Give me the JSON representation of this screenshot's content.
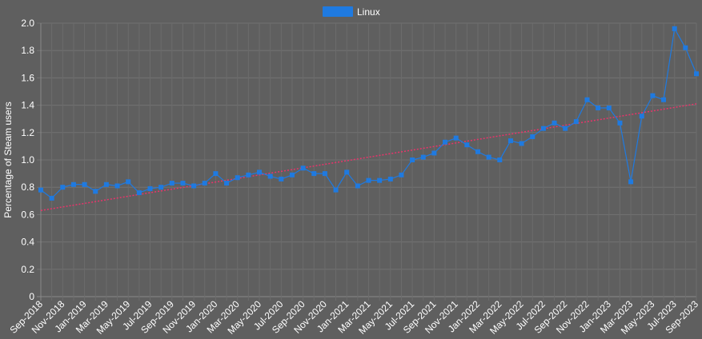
{
  "chart_data": {
    "type": "line",
    "ylabel": "Percentage of Steam users",
    "ylim": [
      0,
      2.0
    ],
    "yticks": [
      "0",
      "0.2",
      "0.4",
      "0.6",
      "0.8",
      "1.0",
      "1.2",
      "1.4",
      "1.6",
      "1.8",
      "2.0"
    ],
    "x": [
      "Sep-2018",
      "Oct-2018",
      "Nov-2018",
      "Dec-2018",
      "Jan-2019",
      "Feb-2019",
      "Mar-2019",
      "Apr-2019",
      "May-2019",
      "Jun-2019",
      "Jul-2019",
      "Aug-2019",
      "Sep-2019",
      "Oct-2019",
      "Nov-2019",
      "Dec-2019",
      "Jan-2020",
      "Feb-2020",
      "Mar-2020",
      "Apr-2020",
      "May-2020",
      "Jun-2020",
      "Jul-2020",
      "Aug-2020",
      "Sep-2020",
      "Oct-2020",
      "Nov-2020",
      "Dec-2020",
      "Jan-2021",
      "Feb-2021",
      "Mar-2021",
      "Apr-2021",
      "May-2021",
      "Jun-2021",
      "Jul-2021",
      "Aug-2021",
      "Sep-2021",
      "Oct-2021",
      "Nov-2021",
      "Dec-2021",
      "Jan-2022",
      "Feb-2022",
      "Mar-2022",
      "Apr-2022",
      "May-2022",
      "Jun-2022",
      "Jul-2022",
      "Aug-2022",
      "Sep-2022",
      "Oct-2022",
      "Nov-2022",
      "Dec-2022",
      "Jan-2023",
      "Feb-2023",
      "Mar-2023",
      "Apr-2023",
      "May-2023",
      "Jun-2023",
      "Jul-2023",
      "Aug-2023",
      "Sep-2023"
    ],
    "xtick_labels": [
      "Sep-2018",
      "Nov-2018",
      "Jan-2019",
      "Mar-2019",
      "May-2019",
      "Jul-2019",
      "Sep-2019",
      "Nov-2019",
      "Jan-2020",
      "Mar-2020",
      "May-2020",
      "Jul-2020",
      "Sep-2020",
      "Nov-2020",
      "Jan-2021",
      "Mar-2021",
      "May-2021",
      "Jul-2021",
      "Sep-2021",
      "Nov-2021",
      "Jan-2022",
      "Mar-2022",
      "May-2022",
      "Jul-2022",
      "Sep-2022",
      "Nov-2022",
      "Jan-2023",
      "Mar-2023",
      "May-2023",
      "Jul-2023",
      "Sep-2023"
    ],
    "series": [
      {
        "name": "Linux",
        "color": "#1f7ae0",
        "values": [
          0.78,
          0.72,
          0.8,
          0.82,
          0.82,
          0.77,
          0.82,
          0.81,
          0.84,
          0.76,
          0.79,
          0.8,
          0.83,
          0.83,
          0.81,
          0.83,
          0.9,
          0.83,
          0.87,
          0.89,
          0.91,
          0.88,
          0.86,
          0.89,
          0.94,
          0.9,
          0.9,
          0.78,
          0.91,
          0.81,
          0.85,
          0.85,
          0.86,
          0.89,
          1.0,
          1.02,
          1.05,
          1.13,
          1.16,
          1.11,
          1.06,
          1.02,
          1.0,
          1.14,
          1.12,
          1.17,
          1.23,
          1.27,
          1.23,
          1.28,
          1.44,
          1.38,
          1.38,
          1.27,
          0.84,
          1.32,
          1.47,
          1.44,
          1.96,
          1.82,
          1.63
        ]
      }
    ],
    "trendline": {
      "color": "#e8346b",
      "start": 0.63,
      "end": 1.41,
      "style": "dotted"
    },
    "grid": true,
    "legend": "top-center"
  }
}
